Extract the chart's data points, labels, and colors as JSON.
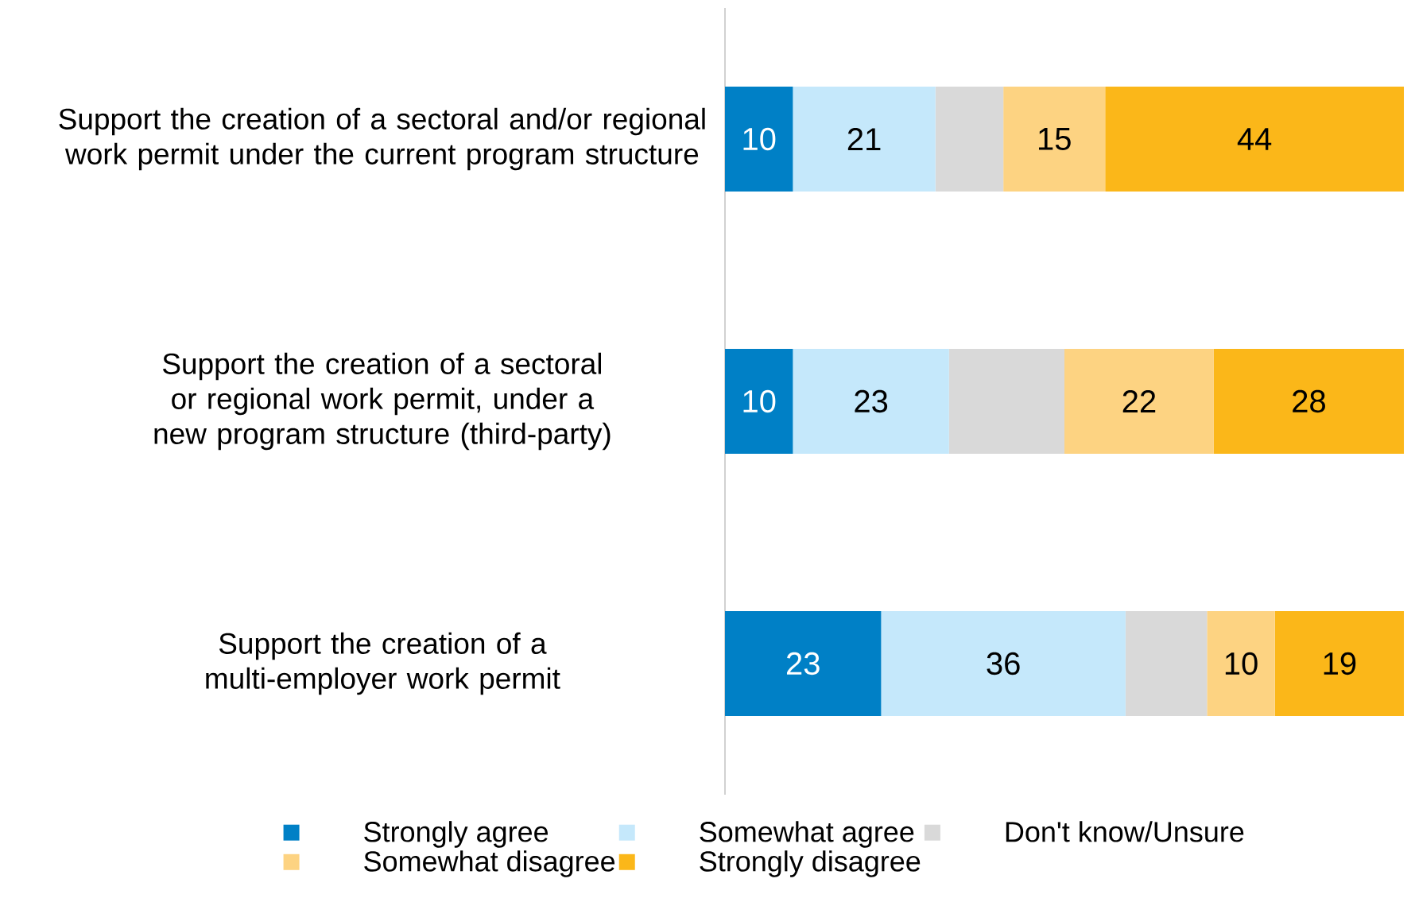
{
  "chart_data": {
    "type": "bar",
    "orientation": "horizontal",
    "stacked": true,
    "legend": "bottom",
    "categories": [
      "Support the creation of a sectoral and/or regional work permit under the current program structure",
      "Support the creation of a sectoral or regional work permit, under a new program structure (third-party)",
      "Support the creation of a multi-employer work permit"
    ],
    "series": [
      {
        "name": "Strongly agree",
        "color": "#0080c6",
        "values": [
          10,
          10,
          23
        ],
        "value_labels": [
          "10",
          "10",
          "23"
        ]
      },
      {
        "name": "Somewhat agree",
        "color": "#c5e8fb",
        "values": [
          21,
          23,
          36
        ],
        "value_labels": [
          "21",
          "23",
          "36"
        ]
      },
      {
        "name": "Don't know/Unsure",
        "color": "#d9d9d9",
        "values": [
          10,
          17,
          12
        ],
        "value_labels": [
          null,
          null,
          null
        ]
      },
      {
        "name": "Somewhat disagree",
        "color": "#fdd382",
        "values": [
          15,
          22,
          10
        ],
        "value_labels": [
          "15",
          "22",
          "10"
        ]
      },
      {
        "name": "Strongly disagree",
        "color": "#fbb719",
        "values": [
          44,
          28,
          19
        ],
        "value_labels": [
          "44",
          "28",
          "19"
        ]
      }
    ]
  }
}
